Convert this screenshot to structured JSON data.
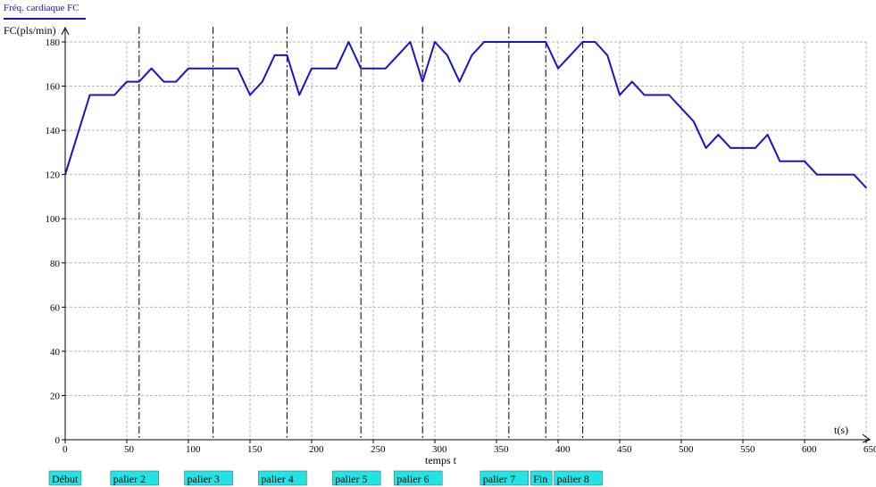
{
  "chart_data": {
    "type": "line",
    "legend_tab": "Fréq. cardiaque FC",
    "ylabel": "FC(pls/min)",
    "xlabel": "t(s)",
    "x_axis_caption": "temps t",
    "xlim": [
      0,
      650
    ],
    "ylim": [
      0,
      180
    ],
    "x_ticks": [
      0,
      50,
      100,
      150,
      200,
      250,
      300,
      350,
      400,
      450,
      500,
      550,
      600,
      650
    ],
    "x_tick_labels": [
      "0",
      "50",
      "100",
      "150",
      "200",
      "250",
      "300",
      "350",
      "400",
      "450",
      "500",
      "550",
      "600",
      "650"
    ],
    "y_ticks": [
      0,
      20,
      40,
      60,
      80,
      100,
      120,
      140,
      160,
      180
    ],
    "y_tick_labels": [
      "0",
      "20",
      "40",
      "60",
      "80",
      "100",
      "120",
      "140",
      "160",
      "180"
    ],
    "grid": true,
    "series": [
      {
        "color": "#1414c8",
        "x": [
          0,
          10,
          20,
          30,
          40,
          50,
          60,
          70,
          80,
          90,
          100,
          110,
          120,
          130,
          140,
          150,
          160,
          170,
          180,
          190,
          200,
          210,
          220,
          230,
          240,
          250,
          260,
          270,
          280,
          290,
          300,
          310,
          320,
          330,
          340,
          350,
          360,
          370,
          380,
          390,
          400,
          410,
          420,
          430,
          440,
          450,
          460,
          470,
          480,
          490,
          500,
          510,
          520,
          530,
          540,
          550,
          560,
          570,
          580,
          590,
          600,
          610,
          620,
          630,
          640,
          650
        ],
        "y": [
          120,
          138,
          156,
          156,
          156,
          162,
          162,
          168,
          162,
          162,
          168,
          168,
          168,
          168,
          168,
          156,
          162,
          174,
          174,
          156,
          168,
          168,
          168,
          180,
          168,
          168,
          168,
          174,
          180,
          162,
          180,
          174,
          162,
          174,
          180,
          180,
          180,
          180,
          180,
          180,
          168,
          174,
          180,
          180,
          174,
          156,
          162,
          156,
          156,
          156,
          150,
          144,
          132,
          138,
          132,
          132,
          132,
          138,
          126,
          126,
          126,
          120,
          120,
          120,
          120,
          114
        ]
      }
    ],
    "markers": [
      {
        "label": "Début",
        "t": 0
      },
      {
        "label": "palier 2",
        "t": 60
      },
      {
        "label": "palier 3",
        "t": 120
      },
      {
        "label": "palier 4",
        "t": 180
      },
      {
        "label": "palier 5",
        "t": 240
      },
      {
        "label": "palier 6",
        "t": 290
      },
      {
        "label": "palier 7",
        "t": 360
      },
      {
        "label": "Fin",
        "t": 390
      },
      {
        "label": "palier 8",
        "t": 420
      }
    ],
    "colors": {
      "line": "#1414c8",
      "axis": "#000000",
      "grid": "#b4b4b4",
      "marker_label_bg": "#22e4e4"
    }
  }
}
